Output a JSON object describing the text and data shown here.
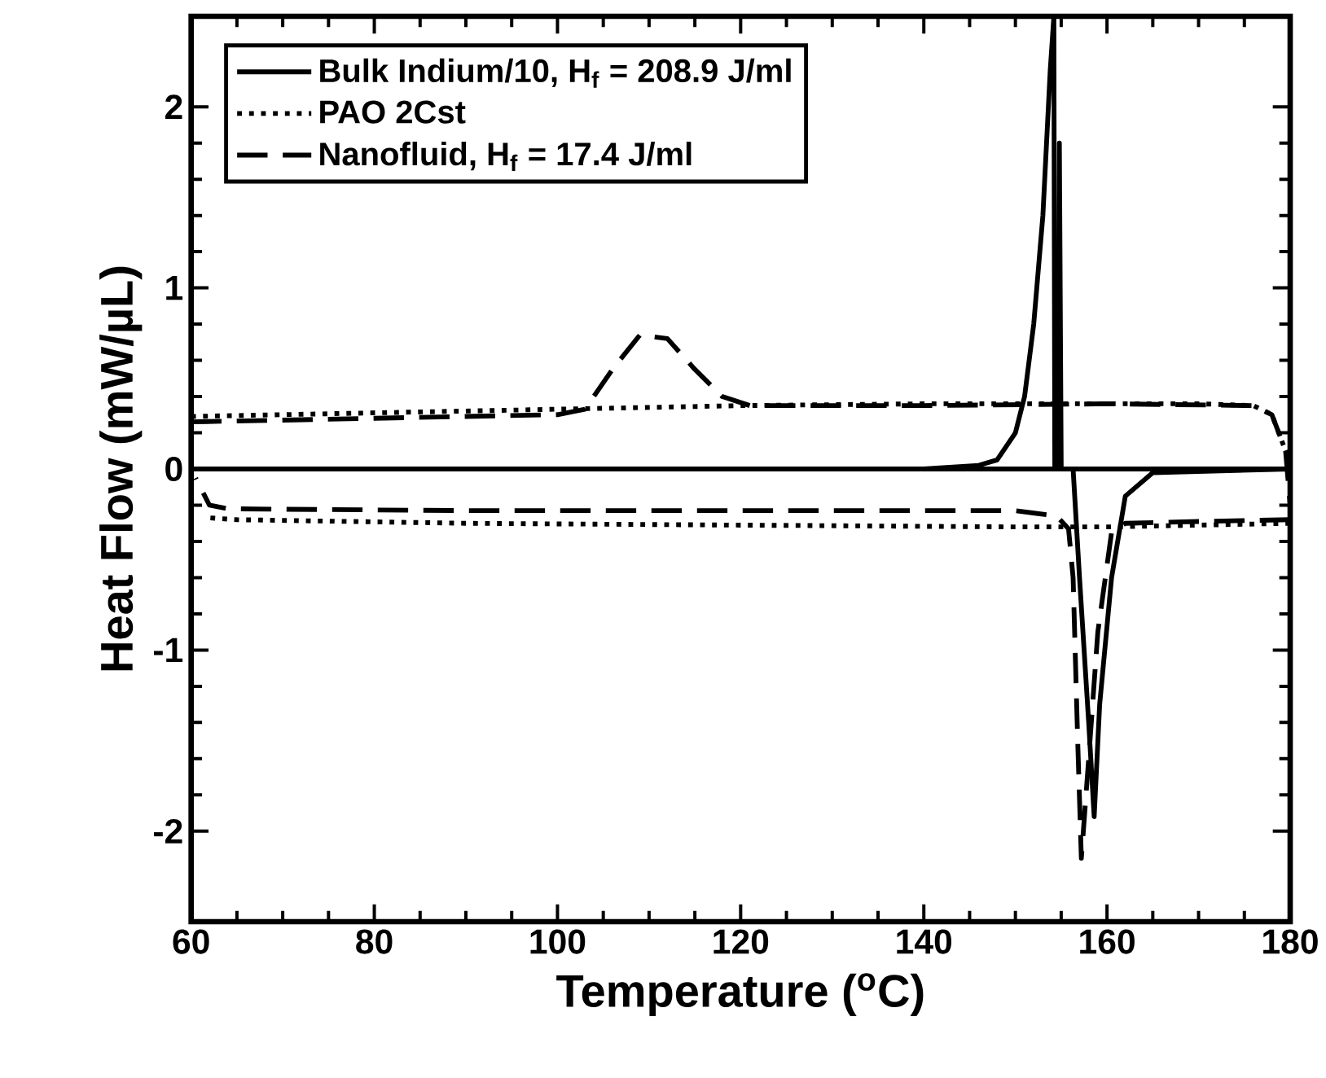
{
  "chart_data": {
    "type": "line",
    "xlabel": "Temperature ($^{o}$C)",
    "ylabel": "Heat Flow (mW/µL)",
    "xlim": [
      60,
      180
    ],
    "xticks": [
      60,
      80,
      100,
      120,
      140,
      160,
      180
    ],
    "ylim": [
      -2.5,
      2.5
    ],
    "yticks": [
      -2,
      -1,
      0,
      1,
      2
    ],
    "legend": "top left",
    "grid": false,
    "marker": "none",
    "series": [
      {
        "name": "Bulk Indium/10, H$_{f}$ = 208.9 J/ml",
        "color": "#000000",
        "line_style": "solid",
        "x": [
          60,
          100,
          140,
          146,
          148,
          150,
          151,
          152,
          153,
          153.8,
          154.2,
          154.3,
          156,
          170,
          180
        ],
        "values": [
          0,
          0,
          0,
          0.02,
          0.05,
          0.2,
          0.4,
          0.8,
          1.4,
          2.2,
          2.5,
          0,
          0,
          0,
          0
        ]
      },
      {
        "name": "PAO 2Cst",
        "color": "#000000",
        "line_style": "dotted",
        "x": [
          60,
          80,
          100,
          120,
          140,
          170,
          176,
          178,
          179.5,
          180
        ],
        "values": [
          0.29,
          0.31,
          0.33,
          0.35,
          0.36,
          0.36,
          0.35,
          0.3,
          0.1,
          0
        ]
      },
      {
        "name": "Nanofluid, H$_{f}$ = 17.4 J/ml",
        "color": "#000000",
        "line_style": "dashed",
        "x": [
          60,
          80,
          100,
          103,
          106,
          109,
          112,
          115,
          118,
          121,
          140,
          160,
          176,
          178,
          179.5,
          180
        ],
        "values": [
          0.26,
          0.28,
          0.3,
          0.33,
          0.55,
          0.74,
          0.72,
          0.55,
          0.4,
          0.35,
          0.35,
          0.36,
          0.35,
          0.3,
          0.1,
          -0.2
        ]
      },
      {
        "color": "#000000",
        "line_style": "solid",
        "x": [
          180,
          165,
          162,
          160.5,
          159.2,
          158.6,
          158,
          157,
          156.3,
          155,
          154.8,
          154.6,
          120,
          60
        ],
        "values": [
          0,
          -0.02,
          -0.15,
          -0.6,
          -1.3,
          -1.92,
          -1.4,
          -0.6,
          0,
          0,
          1.8,
          0,
          0,
          0
        ]
      },
      {
        "color": "#000000",
        "line_style": "dotted",
        "x": [
          180,
          170,
          160,
          150,
          120,
          90,
          65,
          62
        ],
        "values": [
          -0.3,
          -0.31,
          -0.32,
          -0.32,
          -0.31,
          -0.3,
          -0.28,
          -0.27
        ]
      },
      {
        "color": "#000000",
        "line_style": "dashed",
        "x": [
          180,
          170,
          162,
          160.5,
          159,
          158,
          157.2,
          156.8,
          156.3,
          155.8,
          154.5,
          150,
          120,
          90,
          64,
          62,
          60.5
        ],
        "values": [
          -0.28,
          -0.29,
          -0.3,
          -0.35,
          -0.9,
          -1.6,
          -2.15,
          -1.5,
          -0.6,
          -0.33,
          -0.26,
          -0.23,
          -0.23,
          -0.23,
          -0.22,
          -0.2,
          -0.05
        ]
      }
    ]
  }
}
